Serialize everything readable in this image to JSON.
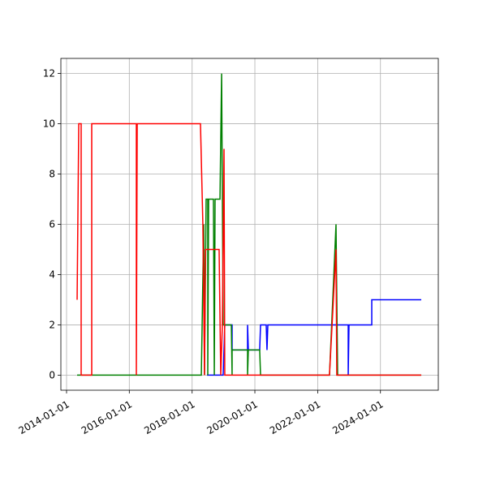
{
  "chart_data": {
    "type": "line",
    "xlim": [
      "2013-10-27",
      "2025-11-04"
    ],
    "xticks": [
      "2014-01-01",
      "2016-01-01",
      "2018-01-01",
      "2020-01-01",
      "2022-01-01",
      "2024-01-01"
    ],
    "ylim": [
      -0.6,
      12.6
    ],
    "yticks": [
      0,
      2,
      4,
      6,
      8,
      10,
      12
    ],
    "grid": true,
    "series": [
      {
        "color": "#0000ff",
        "x": [
          "2018-06-23",
          "2018-12-28",
          "2019-01-16",
          "2019-04-11",
          "2019-04-11",
          "2019-10-08",
          "2019-10-08",
          "2019-10-17",
          "2020-02-26",
          "2020-03-07",
          "2020-05-12",
          "2020-05-21",
          "2020-05-31",
          "2022-12-22",
          "2022-12-22",
          "2022-12-31",
          "2023-09-22",
          "2023-09-22",
          "2025-04-20"
        ],
        "values": [
          0,
          0,
          2,
          2,
          1,
          1,
          2,
          1,
          1,
          2,
          2,
          1,
          2,
          2,
          0,
          2,
          2,
          3,
          3
        ]
      },
      {
        "color": "#008000",
        "x": [
          "2014-05-04",
          "2018-04-18",
          "2018-05-16",
          "2018-05-25",
          "2018-06-13",
          "2018-07-02",
          "2018-07-02",
          "2018-07-12",
          "2018-09-06",
          "2018-09-16",
          "2018-09-25",
          "2018-11-21",
          "2018-12-10",
          "2018-12-28",
          "2019-04-02",
          "2019-04-11",
          "2019-04-11",
          "2019-10-08",
          "2019-10-08",
          "2019-10-17",
          "2020-02-26",
          "2020-03-07",
          "2022-05-18",
          "2022-08-02",
          "2022-08-21",
          "2025-04-20"
        ],
        "values": [
          0,
          0,
          6,
          0,
          7,
          7,
          0,
          7,
          7,
          0,
          7,
          7,
          12,
          2,
          2,
          0,
          1,
          1,
          0,
          1,
          1,
          0,
          0,
          6,
          0,
          0
        ]
      },
      {
        "color": "#ff0000",
        "x": [
          "2014-05-04",
          "2014-05-23",
          "2014-06-20",
          "2014-06-20",
          "2014-10-21",
          "2014-10-21",
          "2016-03-23",
          "2016-03-23",
          "2016-04-02",
          "2018-04-08",
          "2018-05-06",
          "2018-05-25",
          "2018-06-04",
          "2018-11-11",
          "2018-11-30",
          "2018-12-19",
          "2019-01-07",
          "2019-01-16",
          "2022-05-18",
          "2022-08-02",
          "2022-08-11",
          "2025-04-20"
        ],
        "values": [
          3,
          10,
          10,
          0,
          0,
          10,
          10,
          0,
          10,
          10,
          6,
          0,
          5,
          5,
          0,
          2,
          9,
          0,
          0,
          5,
          0,
          0
        ]
      }
    ]
  }
}
